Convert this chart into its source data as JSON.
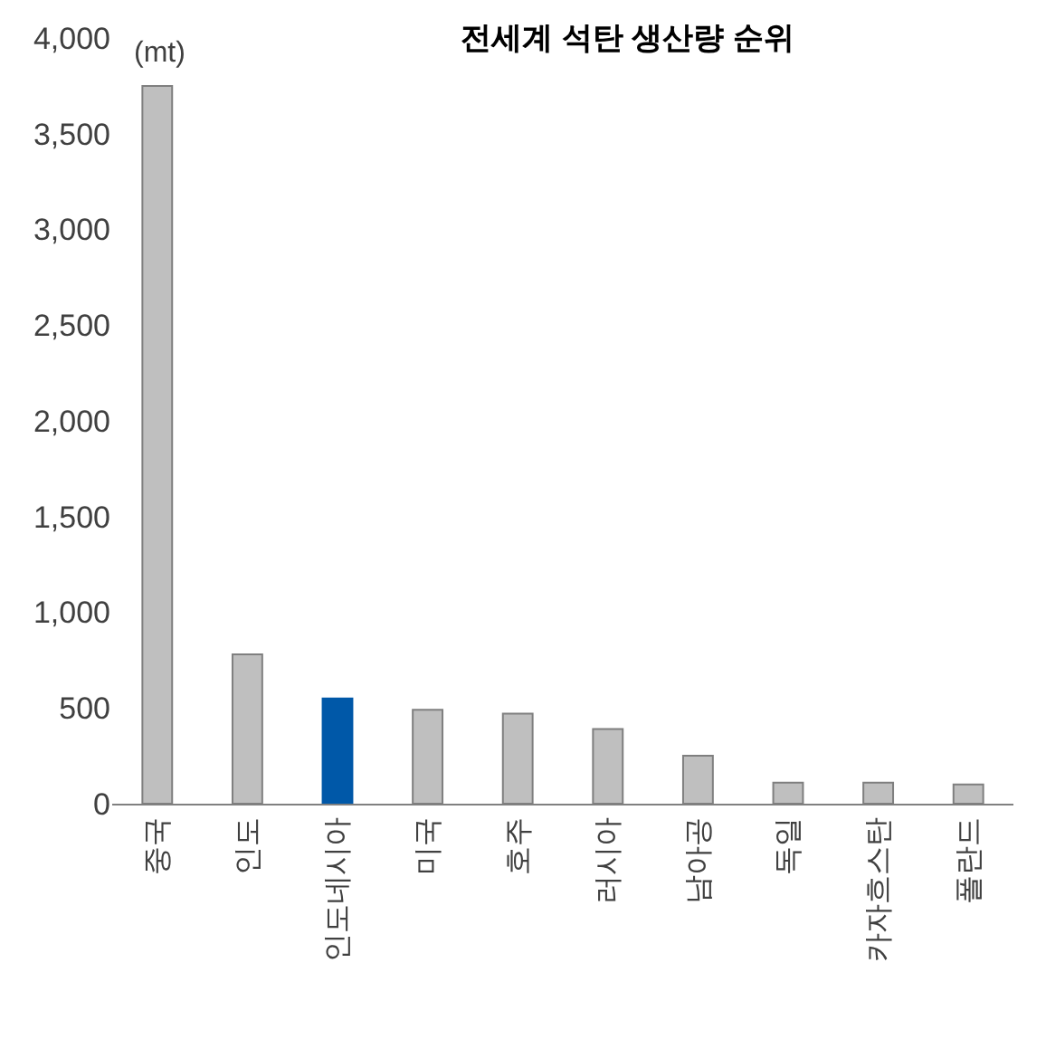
{
  "chart_data": {
    "type": "bar",
    "title": "전세계 석탄 생산량 순위",
    "categories": [
      "중국",
      "인도",
      "인도네시아",
      "미국",
      "호주",
      "러시아",
      "남아공",
      "독일",
      "카자흐스탄",
      "폴란드"
    ],
    "values": [
      3750,
      780,
      550,
      490,
      470,
      390,
      250,
      110,
      110,
      100
    ],
    "colors": [
      "#bfbfbf",
      "#bfbfbf",
      "#0058a8",
      "#bfbfbf",
      "#bfbfbf",
      "#bfbfbf",
      "#bfbfbf",
      "#bfbfbf",
      "#bfbfbf",
      "#bfbfbf"
    ],
    "ylim": [
      0,
      4000
    ],
    "yticks": [
      0,
      500,
      {
        "value": 1000,
        "label": "1,000"
      },
      {
        "value": 1500,
        "label": "1,500"
      },
      {
        "value": 2000,
        "label": "2,000"
      },
      {
        "value": 2500,
        "label": "2,500"
      },
      {
        "value": 3000,
        "label": "3,000"
      },
      {
        "value": 3500,
        "label": "3,500"
      },
      {
        "value": 4000,
        "label": "4,000"
      }
    ],
    "annotations": [
      "(mt)"
    ]
  }
}
